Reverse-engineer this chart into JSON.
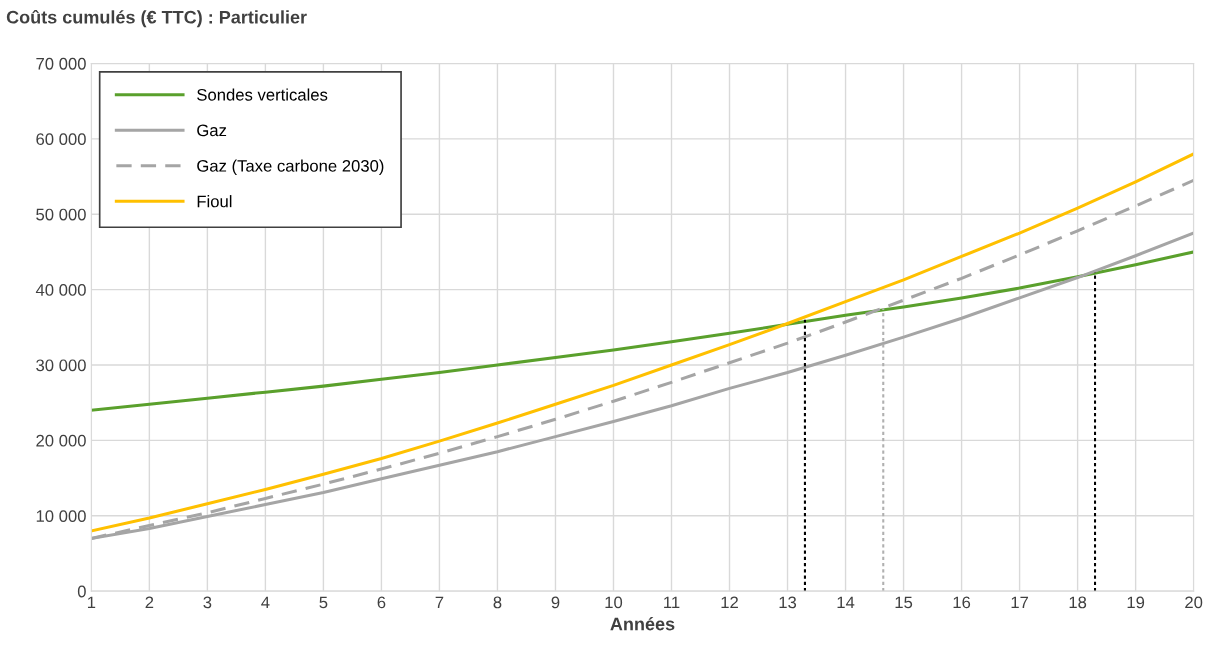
{
  "chart_data": {
    "type": "line",
    "title": "Coûts cumulés (€ TTC) : Particulier",
    "xlabel": "Années",
    "x": [
      1,
      2,
      3,
      4,
      5,
      6,
      7,
      8,
      9,
      10,
      11,
      12,
      13,
      14,
      15,
      16,
      17,
      18,
      19,
      20
    ],
    "series": [
      {
        "name": "Sondes verticales",
        "color": "#5aa02c",
        "line_style": "solid",
        "values": [
          24000,
          24800,
          25600,
          26400,
          27200,
          28100,
          29000,
          30000,
          31000,
          32000,
          33100,
          34200,
          35400,
          36600,
          37700,
          38900,
          40200,
          41700,
          43300,
          45000
        ]
      },
      {
        "name": "Gaz",
        "color": "#a5a5a5",
        "line_style": "solid",
        "values": [
          7000,
          8300,
          9900,
          11500,
          13100,
          14900,
          16700,
          18500,
          20500,
          22500,
          24600,
          26900,
          29000,
          31300,
          33700,
          36200,
          38900,
          41600,
          44500,
          47500
        ]
      },
      {
        "name": "Gaz (Taxe carbone 2030)",
        "color": "#a5a5a5",
        "line_style": "dashed",
        "values": [
          7000,
          8700,
          10400,
          12300,
          14200,
          16200,
          18300,
          20500,
          22800,
          25200,
          27700,
          30300,
          32900,
          35700,
          38600,
          41500,
          44600,
          47800,
          51100,
          54500
        ]
      },
      {
        "name": "Fioul",
        "color": "#ffc000",
        "line_style": "solid",
        "values": [
          8000,
          9700,
          11600,
          13500,
          15500,
          17600,
          19900,
          22300,
          24800,
          27300,
          30000,
          32700,
          35500,
          38400,
          41300,
          44400,
          47500,
          50800,
          54300,
          58000
        ]
      },
      {
        "color": "#000000",
        "line_style": "dotted",
        "x": [
          13.3,
          13.3
        ],
        "values": [
          0,
          36000
        ]
      },
      {
        "color": "#b0b0b0",
        "line_style": "dotted",
        "x": [
          14.65,
          14.65
        ],
        "values": [
          0,
          37500
        ]
      },
      {
        "color": "#000000",
        "line_style": "dotted",
        "x": [
          18.3,
          18.3
        ],
        "values": [
          0,
          42300
        ]
      }
    ],
    "xlim": [
      1,
      20
    ],
    "xticks": [
      1,
      2,
      3,
      4,
      5,
      6,
      7,
      8,
      9,
      10,
      11,
      12,
      13,
      14,
      15,
      16,
      17,
      18,
      19,
      20
    ],
    "ylim": [
      0,
      70000
    ],
    "yticks": [
      {
        "value": 0,
        "label": "0"
      },
      {
        "value": 10000,
        "label": "10 000"
      },
      {
        "value": 20000,
        "label": "20 000"
      },
      {
        "value": 30000,
        "label": "30 000"
      },
      {
        "value": 40000,
        "label": "40 000"
      },
      {
        "value": 50000,
        "label": "50 000"
      },
      {
        "value": 60000,
        "label": "60 000"
      },
      {
        "value": 70000,
        "label": "70 000"
      }
    ],
    "grid": true,
    "legend": "top left"
  }
}
